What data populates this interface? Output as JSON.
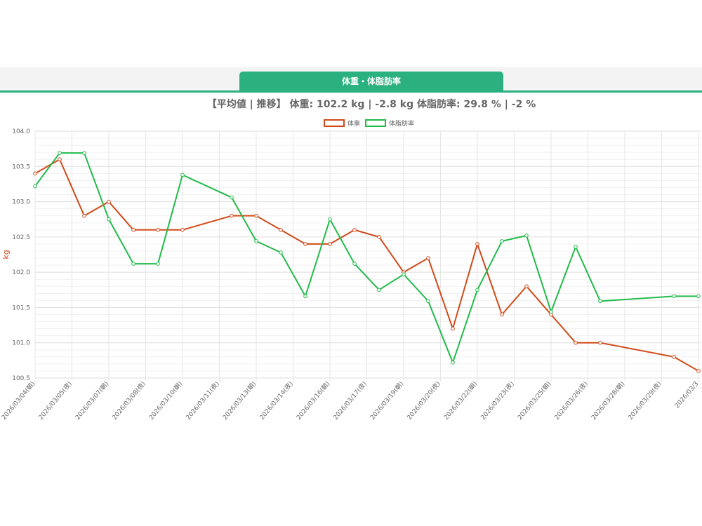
{
  "tab": {
    "label": "体重・体脂肪率"
  },
  "summary": {
    "text": "【平均値 | 推移】 体重: 102.2 kg | -2.8 kg 体脂肪率: 29.8 % | -2 %"
  },
  "colors": {
    "accent": "#2bb07f",
    "weight_line": "#d14a1a",
    "fat_line": "#22bb4a",
    "grid": "#e6e6e6"
  },
  "chart_data": {
    "type": "line",
    "title": "",
    "xlabel": "",
    "ylabel": "kg",
    "ylim": [
      100.5,
      104.0
    ],
    "yticks": [
      "104.0",
      "103.5",
      "103.0",
      "102.5",
      "102.0",
      "101.5",
      "101.0",
      "100.5"
    ],
    "grid": true,
    "legend_position": "top-center",
    "x_tick_labels": [
      "2026/03/04(朝)",
      "2026/03/05(夜)",
      "2026/03/07(朝)",
      "2026/03/08(夜)",
      "2026/03/10(朝)",
      "2026/03/11(夜)",
      "2026/03/13(朝)",
      "2026/03/14(夜)",
      "2026/03/16(朝)",
      "2026/03/17(夜)",
      "2026/03/19(朝)",
      "2026/03/20(夜)",
      "2026/03/22(朝)",
      "2026/03/23(夜)",
      "2026/03/25(朝)",
      "2026/03/26(夜)",
      "2026/03/28(朝)",
      "2026/03/29(夜)",
      "2026/03/3"
    ],
    "series": [
      {
        "name": "体重",
        "color": "#d14a1a",
        "points": [
          [
            0,
            103.4
          ],
          [
            1,
            103.6
          ],
          [
            2,
            102.8
          ],
          [
            3,
            103.0
          ],
          [
            4,
            102.6
          ],
          [
            5,
            102.6
          ],
          [
            6,
            102.6
          ],
          [
            8,
            102.8
          ],
          [
            9,
            102.8
          ],
          [
            10,
            102.6
          ],
          [
            11,
            102.4
          ],
          [
            12,
            102.4
          ],
          [
            13,
            102.6
          ],
          [
            14,
            102.5
          ],
          [
            15,
            102.0
          ],
          [
            16,
            102.2
          ],
          [
            17,
            101.2
          ],
          [
            18,
            102.4
          ],
          [
            19,
            101.4
          ],
          [
            20,
            101.8
          ],
          [
            21,
            101.4
          ],
          [
            22,
            101.0
          ],
          [
            23,
            101.0
          ],
          [
            26,
            100.8
          ],
          [
            27,
            100.6
          ]
        ]
      },
      {
        "name": "体脂肪率",
        "color": "#22bb4a",
        "points": [
          [
            0,
            103.22
          ],
          [
            1,
            103.69
          ],
          [
            2,
            103.69
          ],
          [
            3,
            102.75
          ],
          [
            4,
            102.12
          ],
          [
            5,
            102.12
          ],
          [
            6,
            103.38
          ],
          [
            8,
            103.06
          ],
          [
            9,
            102.44
          ],
          [
            10,
            102.28
          ],
          [
            11,
            101.66
          ],
          [
            12,
            102.75
          ],
          [
            13,
            102.12
          ],
          [
            14,
            101.75
          ],
          [
            15,
            101.97
          ],
          [
            16,
            101.59
          ],
          [
            17,
            100.72
          ],
          [
            18,
            101.75
          ],
          [
            19,
            102.44
          ],
          [
            20,
            102.52
          ],
          [
            21,
            101.44
          ],
          [
            22,
            102.36
          ],
          [
            23,
            101.59
          ],
          [
            26,
            101.66
          ],
          [
            27,
            101.66
          ]
        ]
      }
    ]
  }
}
